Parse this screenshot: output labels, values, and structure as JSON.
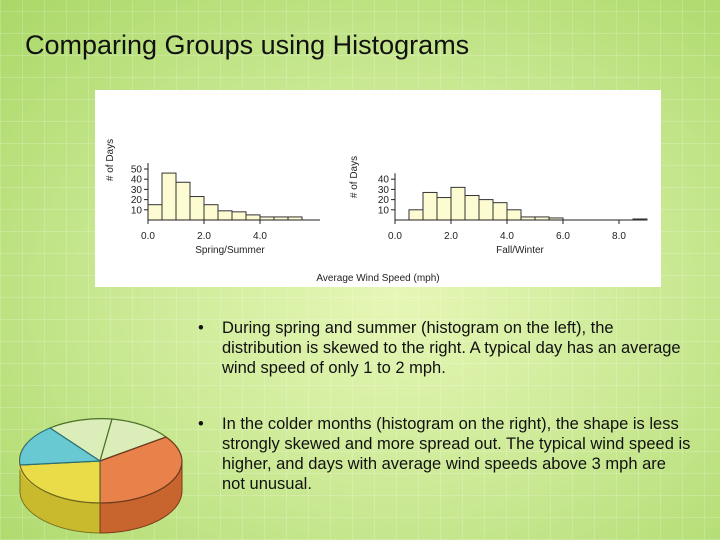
{
  "slide": {
    "title": "Comparing Groups using Histograms",
    "bullet_marker": "•",
    "bullets": [
      "During spring and summer (histogram on the left), the distribution is skewed to the right. A typical day has an average wind speed of only 1 to 2 mph.",
      "In the colder months (histogram on the right), the shape is less strongly skewed and more spread out. The typical wind speed is higher, and days with average wind speeds above 3 mph are not unusual."
    ]
  },
  "colors": {
    "bar_fill": "#fdfbd2",
    "bar_stroke": "#333333",
    "pie_cyan": "#69c9d3",
    "pie_orange": "#e9814a",
    "pie_yellow": "#e9dc48",
    "pie_light": "#dbedb8"
  },
  "chart_data": [
    {
      "type": "bar",
      "xlabel": "Spring/Summer",
      "ylabel": "# of Days",
      "shared_xlabel": "Average Wind Speed (mph)",
      "bin_width": 0.5,
      "bin_starts": [
        0,
        0.5,
        1,
        1.5,
        2,
        2.5,
        3,
        3.5,
        4,
        4.5,
        5
      ],
      "values": [
        15,
        46,
        37,
        23,
        15,
        9,
        8,
        5,
        3,
        3,
        3
      ],
      "xlim": [
        0,
        6.3
      ],
      "ylim": [
        0,
        50
      ],
      "xticks": [
        "0.0",
        "2.0",
        "4.0"
      ],
      "xtick_values": [
        0,
        2,
        4
      ],
      "yticks": [
        "10",
        "20",
        "30",
        "40",
        "50"
      ],
      "ytick_values": [
        10,
        20,
        30,
        40,
        50
      ]
    },
    {
      "type": "bar",
      "xlabel": "Fall/Winter",
      "ylabel": "# of Days",
      "bin_width": 0.5,
      "bin_starts": [
        0.5,
        1,
        1.5,
        2,
        2.5,
        3,
        3.5,
        4,
        4.5,
        5,
        5.5,
        8.5
      ],
      "values": [
        10,
        27,
        22,
        32,
        24,
        20,
        17,
        10,
        3,
        3,
        2,
        1
      ],
      "xlim": [
        0,
        9.1
      ],
      "ylim": [
        0,
        50
      ],
      "xticks": [
        "0.0",
        "2.0",
        "4.0",
        "6.0",
        "8.0"
      ],
      "xtick_values": [
        0,
        2,
        4,
        6,
        8
      ],
      "yticks": [
        "10",
        "20",
        "30",
        "40"
      ],
      "ytick_values": [
        10,
        20,
        30,
        40
      ]
    }
  ]
}
